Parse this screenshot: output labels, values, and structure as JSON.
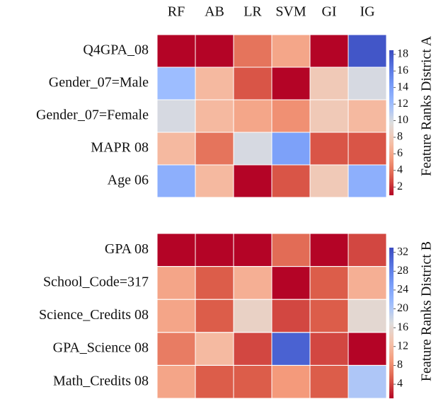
{
  "chart_data": [
    {
      "type": "heatmap",
      "x": [
        "RF",
        "AB",
        "LR",
        "SVM",
        "GI",
        "IG"
      ],
      "y": [
        "Q4GPA_08",
        "Gender_07=Male",
        "Gender_07=Female",
        "MAPR 08",
        "Age 06"
      ],
      "values": [
        [
          1,
          1,
          4,
          6,
          1,
          18
        ],
        [
          12,
          7,
          3,
          1,
          8,
          10
        ],
        [
          10,
          7,
          6,
          5,
          8,
          7
        ],
        [
          7,
          4,
          10,
          14,
          3,
          3
        ],
        [
          13,
          7,
          1,
          3,
          8,
          13
        ]
      ],
      "cmap": "coolwarm_r",
      "clim": [
        1,
        18.5
      ],
      "cticks": [
        2,
        4,
        6,
        8,
        10,
        12,
        14,
        16,
        18
      ],
      "colorbar_label": "Feature Ranks District A"
    },
    {
      "type": "heatmap",
      "y": [
        "GPA 08",
        "School_Code=317",
        "Science_Credits 08",
        "GPA_Science 08",
        "Math_Credits 08"
      ],
      "values": [
        [
          1,
          1,
          1,
          6,
          1,
          4
        ],
        [
          10,
          5,
          11,
          1,
          5,
          11
        ],
        [
          10,
          5,
          15,
          4,
          5,
          16
        ],
        [
          7,
          12,
          4,
          31,
          4,
          1
        ],
        [
          10,
          5,
          5,
          9,
          5,
          20
        ]
      ],
      "cmap": "coolwarm_r",
      "clim": [
        1,
        33
      ],
      "cticks": [
        4,
        8,
        12,
        16,
        20,
        24,
        28,
        32
      ],
      "colorbar_label": "Feature Ranks District B"
    }
  ]
}
